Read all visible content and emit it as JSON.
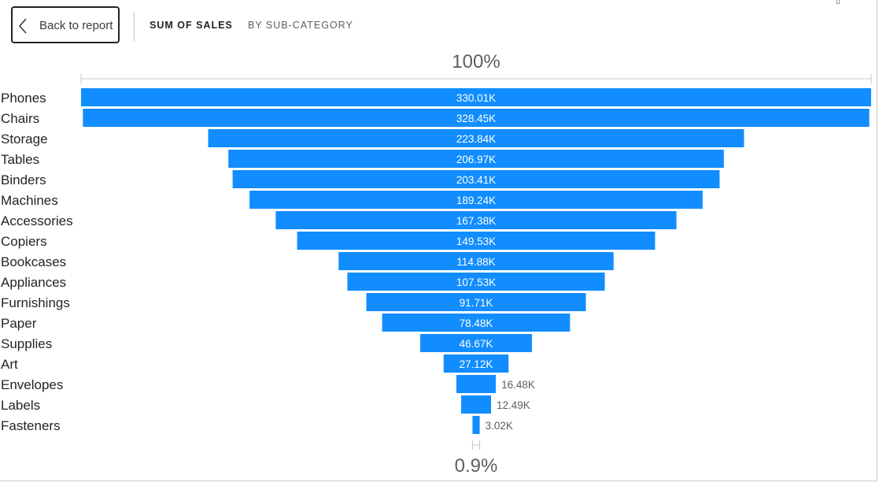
{
  "header": {
    "back_label": "Back to report",
    "measure_tab": "SUM OF SALES",
    "dimension_tab": "BY SUB-CATEGORY"
  },
  "colors": {
    "bar": "#118dff",
    "text": "#252423",
    "label_inside": "#ffffff",
    "label_outside": "#605e5c",
    "ruler": "#c8c6c4"
  },
  "chart_data": {
    "type": "funnel",
    "top_percent_label": "100%",
    "bottom_percent_label": "0.9%",
    "categories": [
      "Phones",
      "Chairs",
      "Storage",
      "Tables",
      "Binders",
      "Machines",
      "Accessories",
      "Copiers",
      "Bookcases",
      "Appliances",
      "Furnishings",
      "Paper",
      "Supplies",
      "Art",
      "Envelopes",
      "Labels",
      "Fasteners"
    ],
    "values": [
      330010,
      328450,
      223840,
      206970,
      203410,
      189240,
      167380,
      149530,
      114880,
      107530,
      91710,
      78480,
      46670,
      27120,
      16480,
      12490,
      3020
    ],
    "value_labels": [
      "330.01K",
      "328.45K",
      "223.84K",
      "206.97K",
      "203.41K",
      "189.24K",
      "167.38K",
      "149.53K",
      "114.88K",
      "107.53K",
      "91.71K",
      "78.48K",
      "46.67K",
      "27.12K",
      "16.48K",
      "12.49K",
      "3.02K"
    ]
  }
}
